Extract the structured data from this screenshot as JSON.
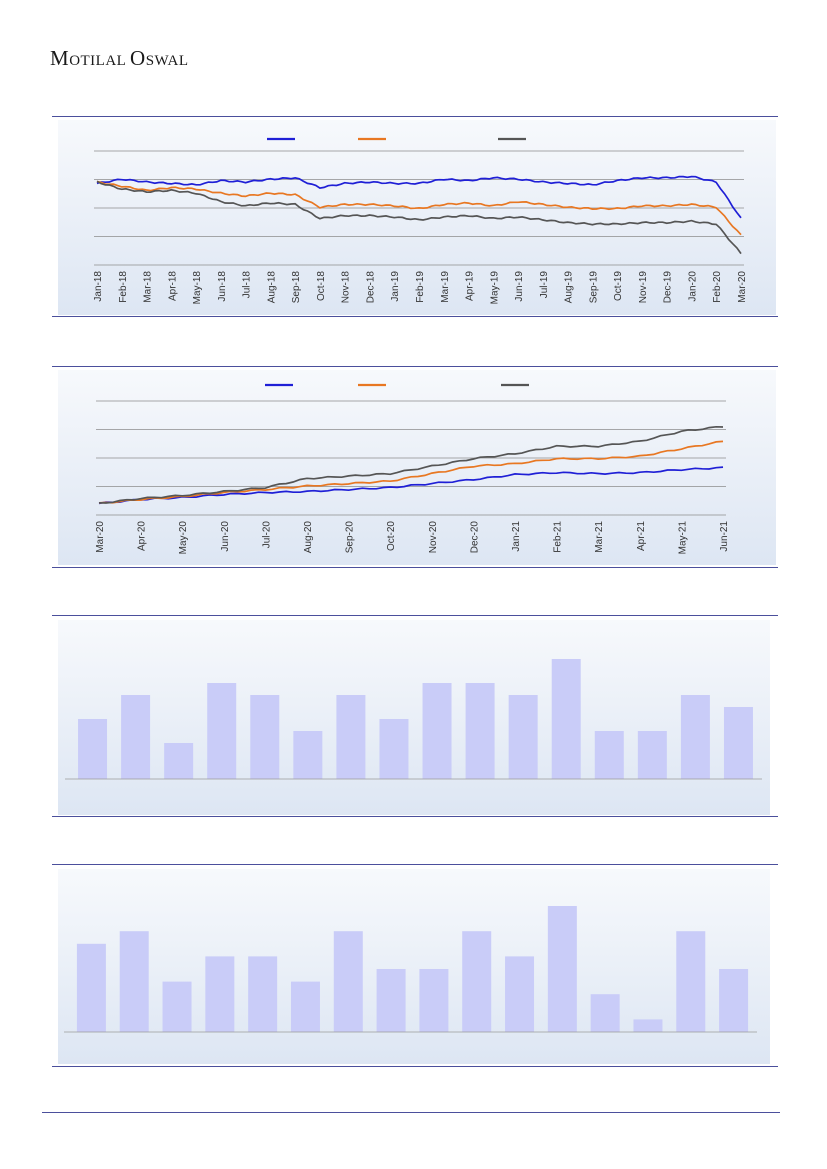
{
  "header": {
    "logo_first": "M",
    "logo_rest": "OTILAL ",
    "logo_second": "O",
    "logo_rest2": "SWAL"
  },
  "chart_data": [
    {
      "type": "line",
      "title": "",
      "x_tick_labels": [
        "Jan-18",
        "Feb-18",
        "Mar-18",
        "Apr-18",
        "May-18",
        "Jun-18",
        "Jul-18",
        "Aug-18",
        "Sep-18",
        "Oct-18",
        "Nov-18",
        "Dec-18",
        "Jan-19",
        "Feb-19",
        "Mar-19",
        "Apr-19",
        "May-19",
        "Jun-19",
        "Jul-19",
        "Aug-19",
        "Sep-19",
        "Oct-19",
        "Nov-19",
        "Dec-19",
        "Jan-20",
        "Feb-20",
        "Mar-20"
      ],
      "series": [
        {
          "color": "#1f1fd6",
          "values": [
            95,
            98,
            96,
            95,
            94,
            97,
            96,
            98,
            99,
            92,
            95,
            96,
            95,
            95,
            98,
            97,
            99,
            98,
            96,
            95,
            94,
            97,
            99,
            99,
            100,
            96,
            70
          ]
        },
        {
          "color": "#e87722",
          "values": [
            96,
            93,
            90,
            92,
            91,
            88,
            86,
            88,
            87,
            78,
            80,
            80,
            79,
            77,
            80,
            81,
            79,
            82,
            80,
            78,
            77,
            77,
            79,
            79,
            80,
            78,
            58
          ]
        },
        {
          "color": "#555555",
          "values": [
            96,
            91,
            89,
            90,
            88,
            82,
            79,
            81,
            80,
            70,
            72,
            72,
            71,
            69,
            71,
            72,
            70,
            71,
            69,
            67,
            66,
            66,
            67,
            67,
            68,
            66,
            45
          ]
        }
      ],
      "grid": true,
      "gridlines": 5
    },
    {
      "type": "line",
      "title": "",
      "x_tick_labels": [
        "Mar-20",
        "Apr-20",
        "May-20",
        "Jun-20",
        "Jul-20",
        "Aug-20",
        "Sep-20",
        "Oct-20",
        "Nov-20",
        "Dec-20",
        "Jan-21",
        "Feb-21",
        "Mar-21",
        "Apr-21",
        "May-21",
        "Jun-21"
      ],
      "series": [
        {
          "color": "#1f1fd6",
          "values": [
            100,
            108,
            112,
            118,
            122,
            124,
            128,
            132,
            140,
            148,
            158,
            162,
            160,
            162,
            168,
            172
          ]
        },
        {
          "color": "#e87722",
          "values": [
            100,
            108,
            114,
            122,
            128,
            135,
            140,
            145,
            160,
            175,
            180,
            190,
            190,
            195,
            210,
            225
          ]
        },
        {
          "color": "#555555",
          "values": [
            100,
            110,
            116,
            124,
            132,
            150,
            155,
            160,
            175,
            190,
            200,
            215,
            215,
            225,
            245,
            255
          ]
        }
      ],
      "grid": true,
      "gridlines": 5
    },
    {
      "type": "bar",
      "title": "",
      "values": [
        5,
        7,
        3,
        8,
        7,
        4,
        7,
        5,
        8,
        8,
        7,
        10,
        4,
        4,
        7,
        6
      ],
      "color": "#c9ccf8",
      "grid": false
    },
    {
      "type": "bar",
      "title": "",
      "values": [
        7,
        8,
        4,
        6,
        6,
        4,
        8,
        5,
        5,
        8,
        6,
        10,
        3,
        1,
        8,
        5
      ],
      "color": "#c9ccf8",
      "grid": false
    }
  ]
}
